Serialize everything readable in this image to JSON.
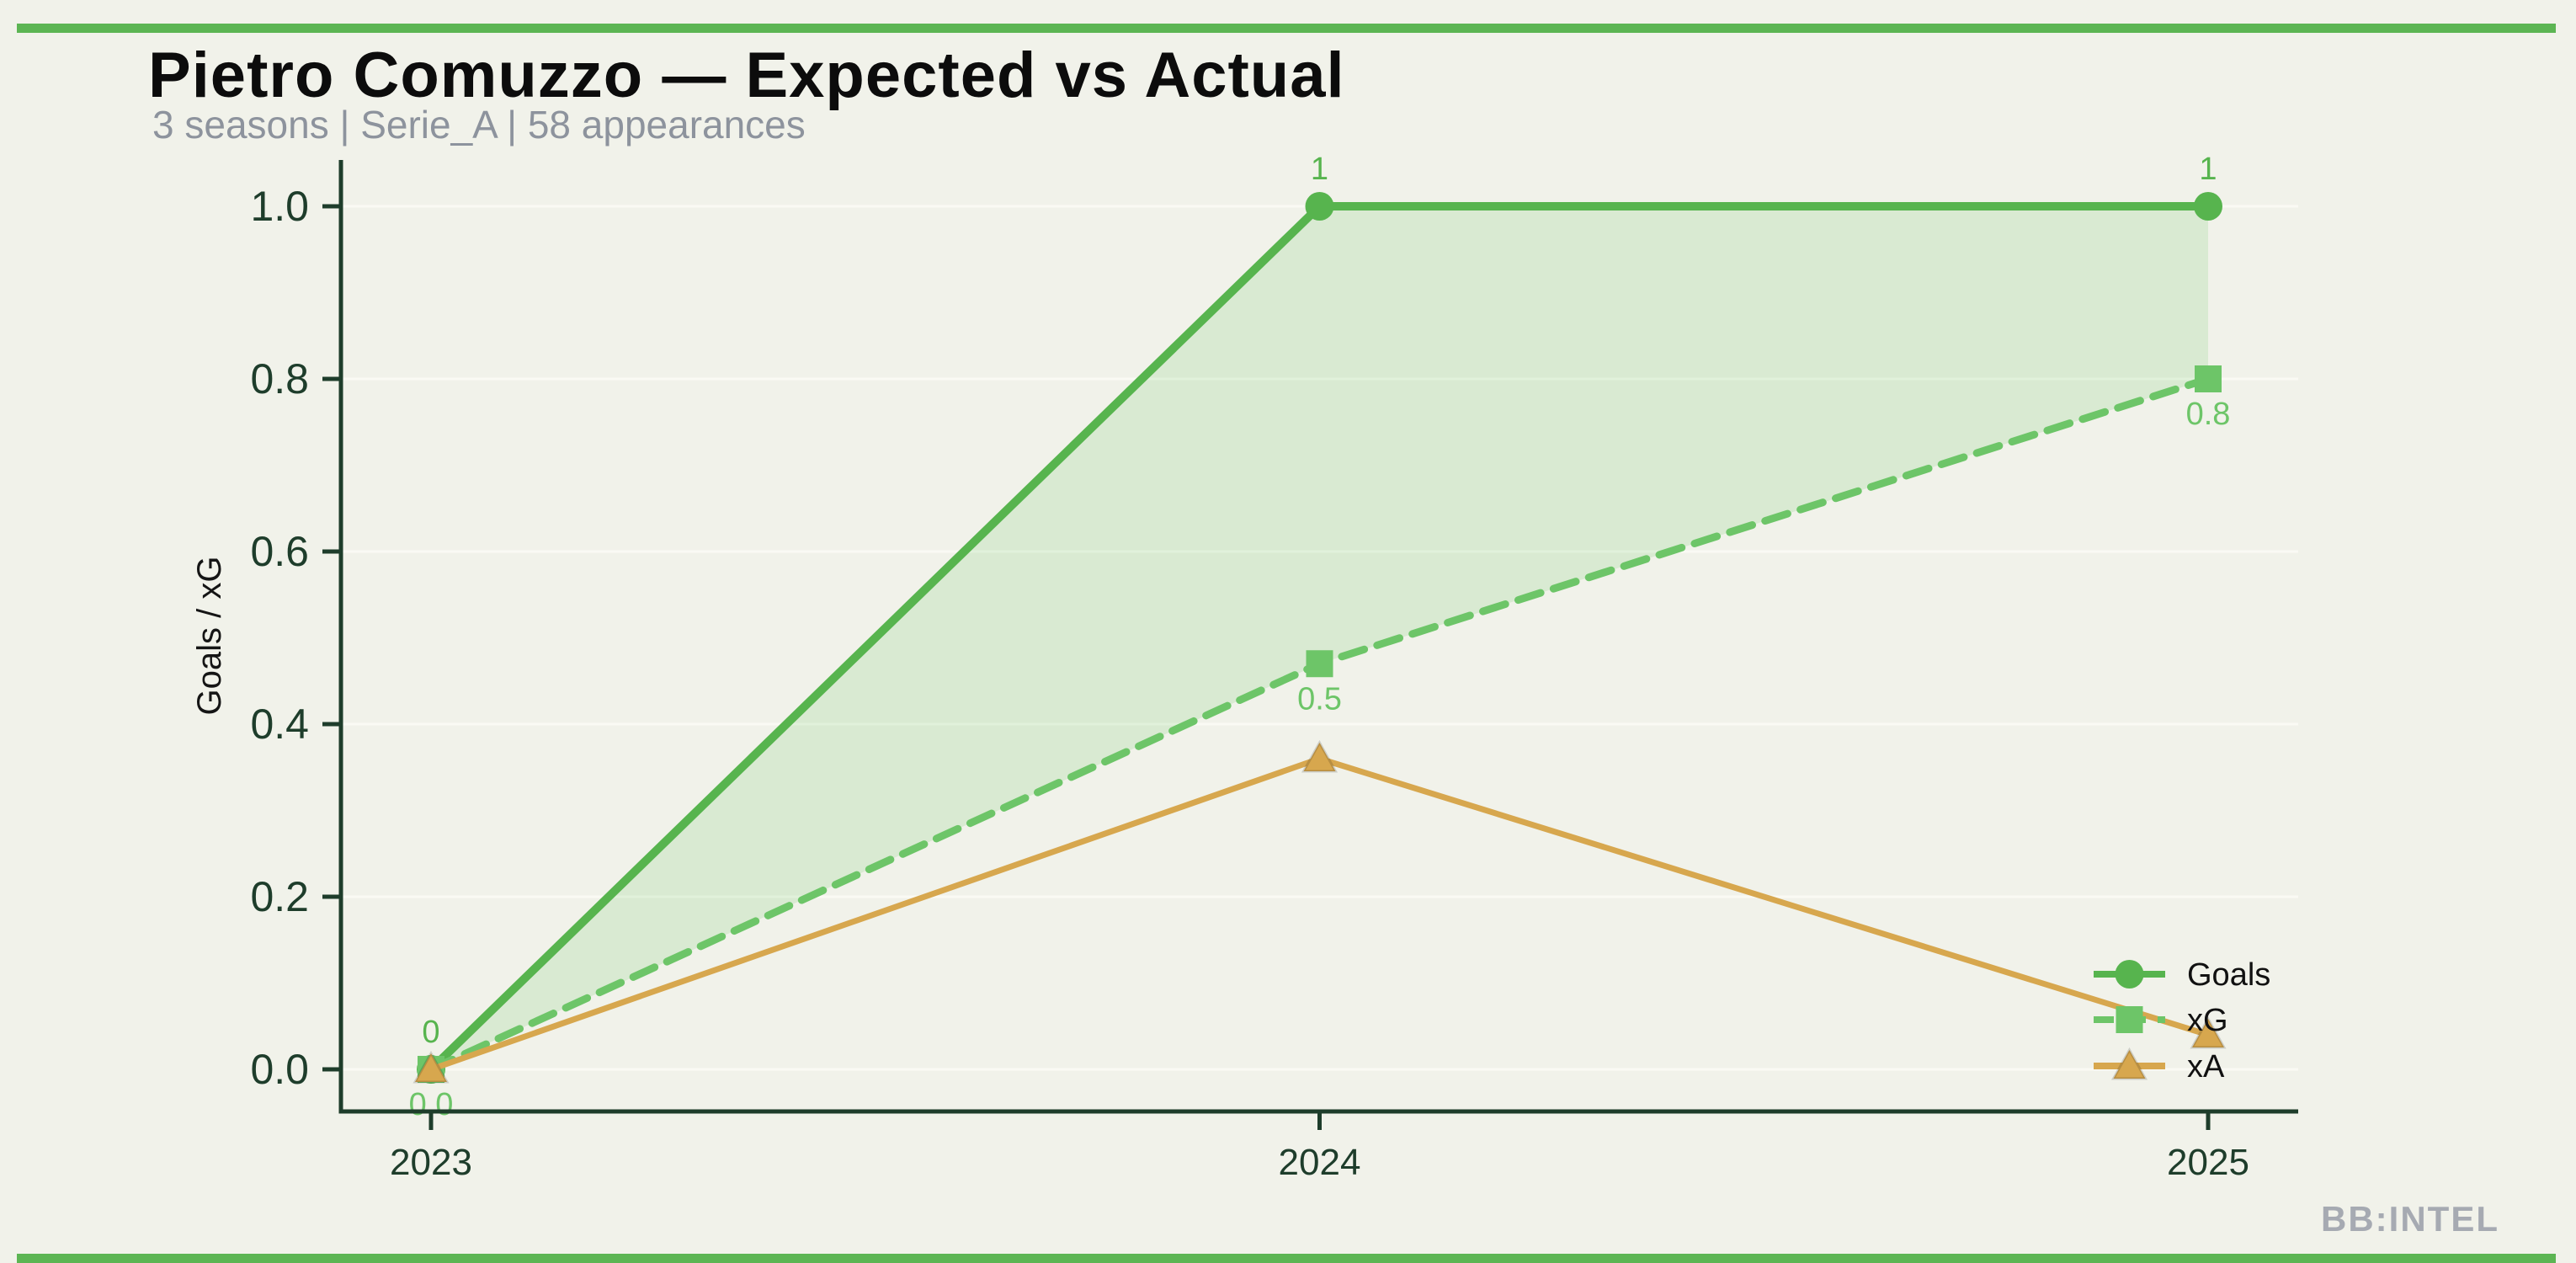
{
  "header": {
    "title": "Pietro Comuzzo — Expected vs Actual",
    "subtitle": "3 seasons | Serie_A | 58 appearances"
  },
  "watermark": "BB:INTEL",
  "colors": {
    "background": "#f1f2ea",
    "accent_bar": "#5cb553",
    "axis": "#1e3d2b",
    "grid": "#fafaf4",
    "fill_between": "rgba(109,197,104,0.18)",
    "title_text": "#0c0c0c",
    "subtitle_text": "#8d939d",
    "watermark_text": "#a6aab2",
    "ylabel_text": "#151515",
    "legend_text": "#111111"
  },
  "chart_data": {
    "type": "line",
    "title": "Pietro Comuzzo — Expected vs Actual",
    "subtitle": "3 seasons | Serie_A | 58 appearances",
    "categories": [
      "2023",
      "2024",
      "2025"
    ],
    "series": [
      {
        "name": "Goals",
        "values": [
          0,
          1,
          1
        ],
        "point_labels": [
          "0",
          "1",
          "1"
        ],
        "label_side": "above",
        "color": "#57b44e",
        "style": "solid",
        "marker": "circle"
      },
      {
        "name": "xG",
        "values": [
          0,
          0.47,
          0.8
        ],
        "point_labels": [
          "0.0",
          "0.5",
          "0.8"
        ],
        "label_side": "below",
        "color": "#6dc568",
        "style": "dashed",
        "marker": "square"
      },
      {
        "name": "xA",
        "values": [
          0,
          0.36,
          0.04
        ],
        "point_labels": [],
        "label_side": "below",
        "color": "#d7a74e",
        "style": "solid",
        "marker": "triangle"
      }
    ],
    "xlabel": "",
    "ylabel": "Goals / xG",
    "ylim": [
      0,
      1.0
    ],
    "yticks": [
      0.0,
      0.2,
      0.4,
      0.6,
      0.8,
      1.0
    ],
    "ytick_labels": [
      "0.0",
      "0.2",
      "0.4",
      "0.6",
      "0.8",
      "1.0"
    ],
    "grid": "horizontal",
    "legend_position": "lower right",
    "fill_between": [
      "Goals",
      "xG"
    ]
  }
}
